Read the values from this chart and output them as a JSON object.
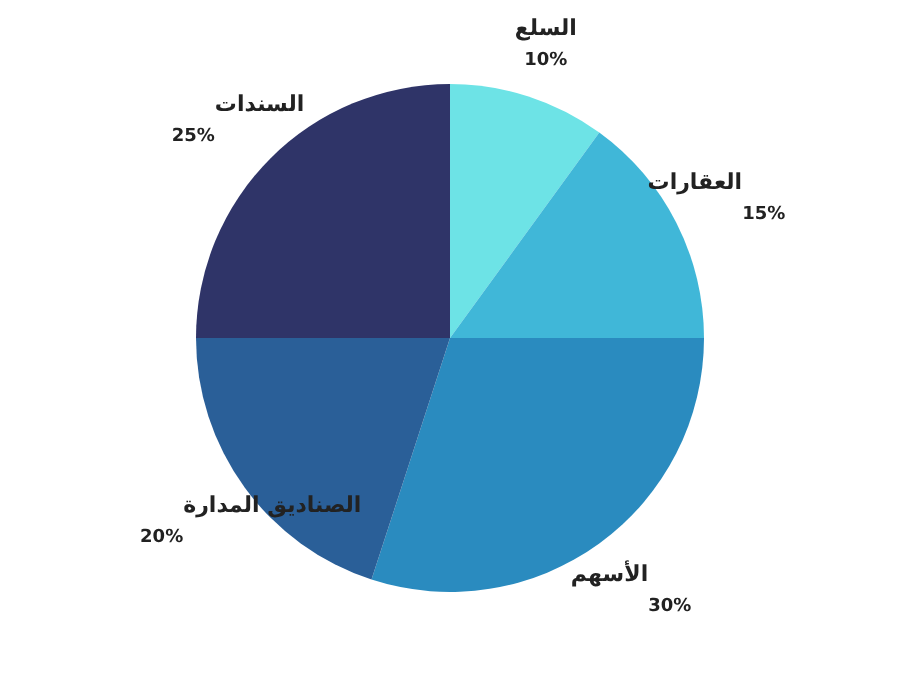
{
  "chart_data": {
    "type": "pie",
    "categories": [
      "السلع",
      "العقارات",
      "الأسهم",
      "الصناديق المدارة",
      "السندات"
    ],
    "values": [
      10,
      15,
      30,
      20,
      25
    ],
    "colors": [
      "#6de3e6",
      "#40b7d8",
      "#2a8bbf",
      "#2a5f98",
      "#2f3468"
    ],
    "value_labels": [
      "10%",
      "15%",
      "30%",
      "20%",
      "25%"
    ]
  }
}
